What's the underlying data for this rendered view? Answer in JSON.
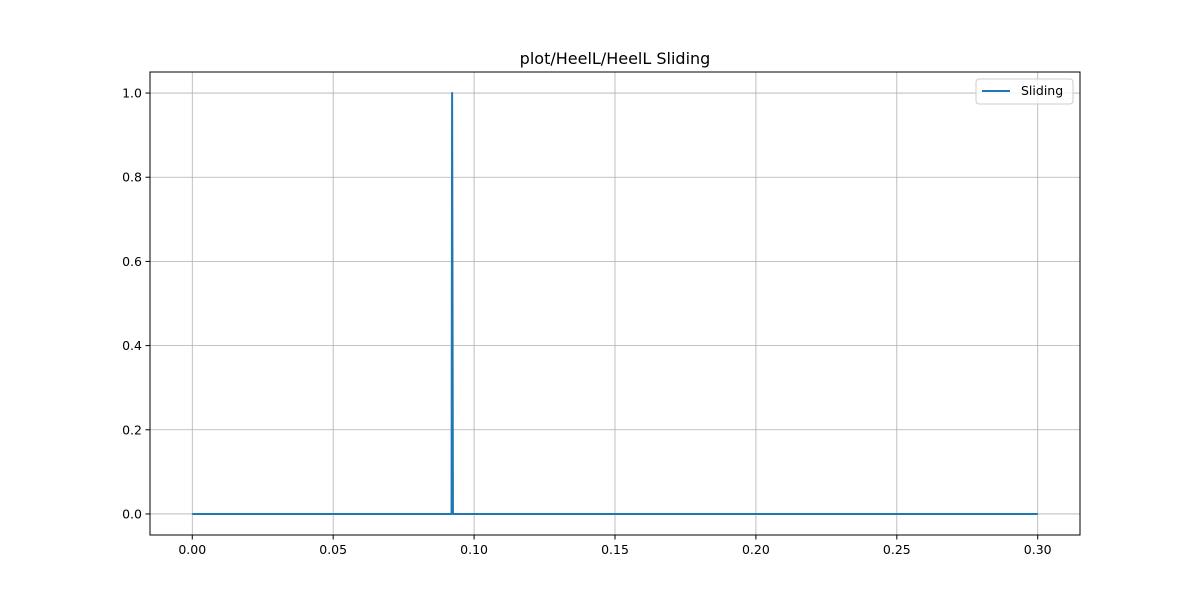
{
  "chart_data": {
    "type": "line",
    "title": "plot/HeelL/HeelL Sliding",
    "xlabel": "",
    "ylabel": "",
    "xlim": [
      -0.015,
      0.315
    ],
    "ylim": [
      -0.05,
      1.05
    ],
    "x_ticks": [
      0.0,
      0.05,
      0.1,
      0.15,
      0.2,
      0.25,
      0.3
    ],
    "x_tick_labels": [
      "0.00",
      "0.05",
      "0.10",
      "0.15",
      "0.20",
      "0.25",
      "0.30"
    ],
    "y_ticks": [
      0.0,
      0.2,
      0.4,
      0.6,
      0.8,
      1.0
    ],
    "y_tick_labels": [
      "0.0",
      "0.2",
      "0.4",
      "0.6",
      "0.8",
      "1.0"
    ],
    "grid": true,
    "legend_position": "top-right",
    "series": [
      {
        "name": "Sliding",
        "color": "#1f77b4",
        "x": [
          0.0,
          0.092,
          0.0922,
          0.0925,
          0.3
        ],
        "y": [
          0,
          0,
          1,
          0,
          0
        ]
      }
    ]
  }
}
